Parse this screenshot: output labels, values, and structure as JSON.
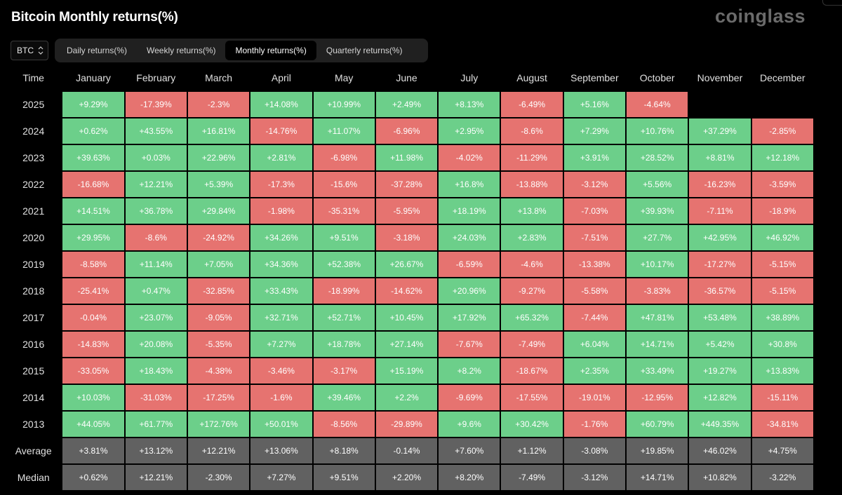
{
  "header": {
    "title": "Bitcoin Monthly returns(%)",
    "logo": "coinglass"
  },
  "asset_select": {
    "value": "BTC"
  },
  "tabs": [
    {
      "label": "Daily returns(%)",
      "active": false
    },
    {
      "label": "Weekly returns(%)",
      "active": false
    },
    {
      "label": "Monthly returns(%)",
      "active": true
    },
    {
      "label": "Quarterly returns(%)",
      "active": false
    }
  ],
  "colors": {
    "positive": "#6ccf8a",
    "negative": "#e67370",
    "stat": "#616161"
  },
  "table": {
    "corner": "Time",
    "months": [
      "January",
      "February",
      "March",
      "April",
      "May",
      "June",
      "July",
      "August",
      "September",
      "October",
      "November",
      "December"
    ],
    "rows": [
      {
        "year": "2025",
        "values": [
          "+9.29%",
          "-17.39%",
          "-2.3%",
          "+14.08%",
          "+10.99%",
          "+2.49%",
          "+8.13%",
          "-6.49%",
          "+5.16%",
          "-4.64%",
          "",
          ""
        ]
      },
      {
        "year": "2024",
        "values": [
          "+0.62%",
          "+43.55%",
          "+16.81%",
          "-14.76%",
          "+11.07%",
          "-6.96%",
          "+2.95%",
          "-8.6%",
          "+7.29%",
          "+10.76%",
          "+37.29%",
          "-2.85%"
        ]
      },
      {
        "year": "2023",
        "values": [
          "+39.63%",
          "+0.03%",
          "+22.96%",
          "+2.81%",
          "-6.98%",
          "+11.98%",
          "-4.02%",
          "-11.29%",
          "+3.91%",
          "+28.52%",
          "+8.81%",
          "+12.18%"
        ]
      },
      {
        "year": "2022",
        "values": [
          "-16.68%",
          "+12.21%",
          "+5.39%",
          "-17.3%",
          "-15.6%",
          "-37.28%",
          "+16.8%",
          "-13.88%",
          "-3.12%",
          "+5.56%",
          "-16.23%",
          "-3.59%"
        ]
      },
      {
        "year": "2021",
        "values": [
          "+14.51%",
          "+36.78%",
          "+29.84%",
          "-1.98%",
          "-35.31%",
          "-5.95%",
          "+18.19%",
          "+13.8%",
          "-7.03%",
          "+39.93%",
          "-7.11%",
          "-18.9%"
        ]
      },
      {
        "year": "2020",
        "values": [
          "+29.95%",
          "-8.6%",
          "-24.92%",
          "+34.26%",
          "+9.51%",
          "-3.18%",
          "+24.03%",
          "+2.83%",
          "-7.51%",
          "+27.7%",
          "+42.95%",
          "+46.92%"
        ]
      },
      {
        "year": "2019",
        "values": [
          "-8.58%",
          "+11.14%",
          "+7.05%",
          "+34.36%",
          "+52.38%",
          "+26.67%",
          "-6.59%",
          "-4.6%",
          "-13.38%",
          "+10.17%",
          "-17.27%",
          "-5.15%"
        ]
      },
      {
        "year": "2018",
        "values": [
          "-25.41%",
          "+0.47%",
          "-32.85%",
          "+33.43%",
          "-18.99%",
          "-14.62%",
          "+20.96%",
          "-9.27%",
          "-5.58%",
          "-3.83%",
          "-36.57%",
          "-5.15%"
        ]
      },
      {
        "year": "2017",
        "values": [
          "-0.04%",
          "+23.07%",
          "-9.05%",
          "+32.71%",
          "+52.71%",
          "+10.45%",
          "+17.92%",
          "+65.32%",
          "-7.44%",
          "+47.81%",
          "+53.48%",
          "+38.89%"
        ]
      },
      {
        "year": "2016",
        "values": [
          "-14.83%",
          "+20.08%",
          "-5.35%",
          "+7.27%",
          "+18.78%",
          "+27.14%",
          "-7.67%",
          "-7.49%",
          "+6.04%",
          "+14.71%",
          "+5.42%",
          "+30.8%"
        ]
      },
      {
        "year": "2015",
        "values": [
          "-33.05%",
          "+18.43%",
          "-4.38%",
          "-3.46%",
          "-3.17%",
          "+15.19%",
          "+8.2%",
          "-18.67%",
          "+2.35%",
          "+33.49%",
          "+19.27%",
          "+13.83%"
        ]
      },
      {
        "year": "2014",
        "values": [
          "+10.03%",
          "-31.03%",
          "-17.25%",
          "-1.6%",
          "+39.46%",
          "+2.2%",
          "-9.69%",
          "-17.55%",
          "-19.01%",
          "-12.95%",
          "+12.82%",
          "-15.11%"
        ]
      },
      {
        "year": "2013",
        "values": [
          "+44.05%",
          "+61.77%",
          "+172.76%",
          "+50.01%",
          "-8.56%",
          "-29.89%",
          "+9.6%",
          "+30.42%",
          "-1.76%",
          "+60.79%",
          "+449.35%",
          "-34.81%"
        ]
      }
    ],
    "average": {
      "label": "Average",
      "values": [
        "+3.81%",
        "+13.12%",
        "+12.21%",
        "+13.06%",
        "+8.18%",
        "-0.14%",
        "+7.60%",
        "+1.12%",
        "-3.08%",
        "+19.85%",
        "+46.02%",
        "+4.75%"
      ]
    },
    "median": {
      "label": "Median",
      "values": [
        "+0.62%",
        "+12.21%",
        "-2.30%",
        "+7.27%",
        "+9.51%",
        "+2.20%",
        "+8.20%",
        "-7.49%",
        "-3.12%",
        "+14.71%",
        "+10.82%",
        "-3.22%"
      ]
    }
  }
}
